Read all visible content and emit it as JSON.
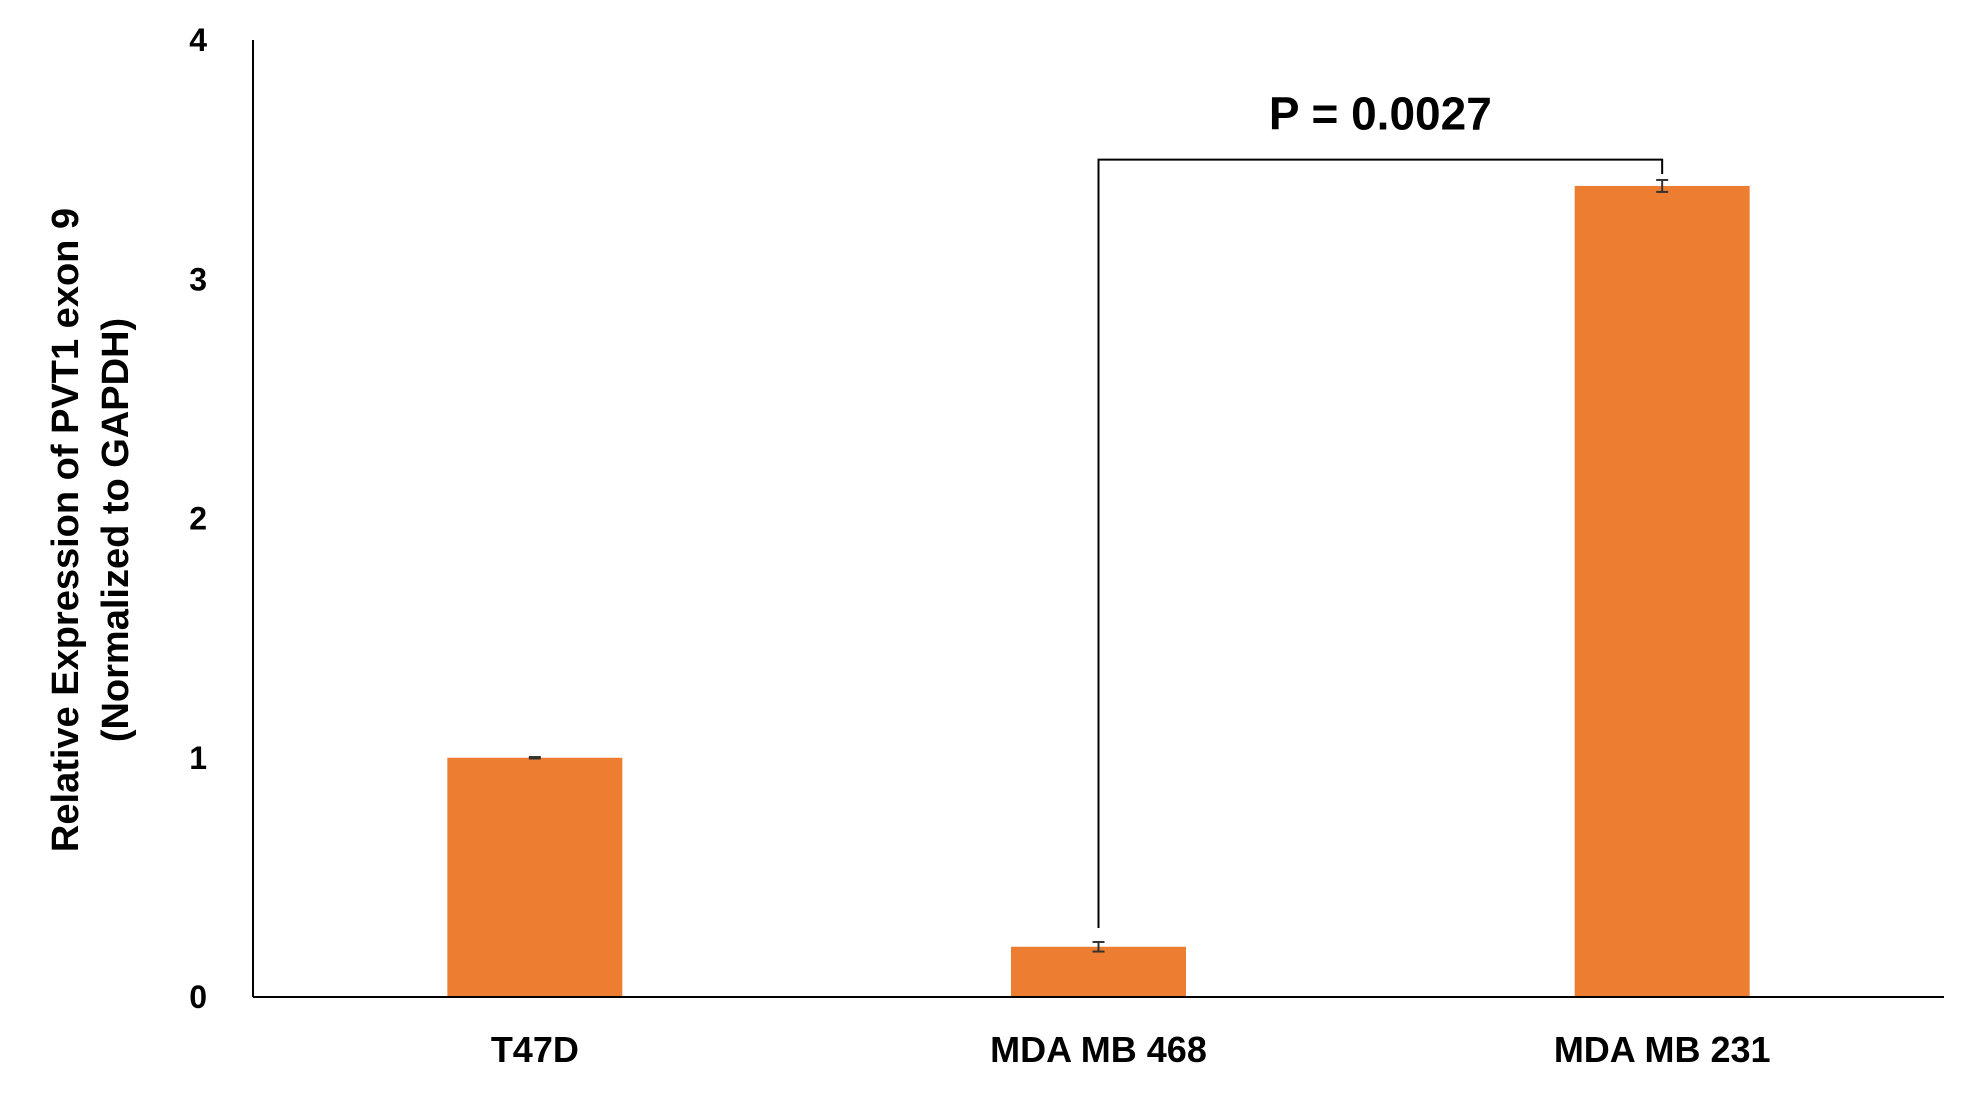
{
  "chart_data": {
    "type": "bar",
    "categories": [
      "T47D",
      "MDA MB 468",
      "MDA MB 231"
    ],
    "values": [
      1.0,
      0.21,
      3.39
    ],
    "errors": [
      0.003,
      0.02,
      0.025
    ],
    "ylabel_lines": [
      "Relative Expression of PVT1 exon 9",
      "(Normalized to GAPDH)"
    ],
    "xlabel": "",
    "ylim": [
      0,
      4
    ],
    "yticks": [
      0,
      1,
      2,
      3,
      4
    ],
    "ytick_labels": [
      "0",
      "1",
      "2",
      "3",
      "4"
    ],
    "grid": false,
    "bar_color": "#ED7D31",
    "annotation": {
      "text": "P = 0.0027",
      "from_category": "MDA MB 468",
      "to_category": "MDA MB 231",
      "bracket_y": 3.5
    }
  }
}
